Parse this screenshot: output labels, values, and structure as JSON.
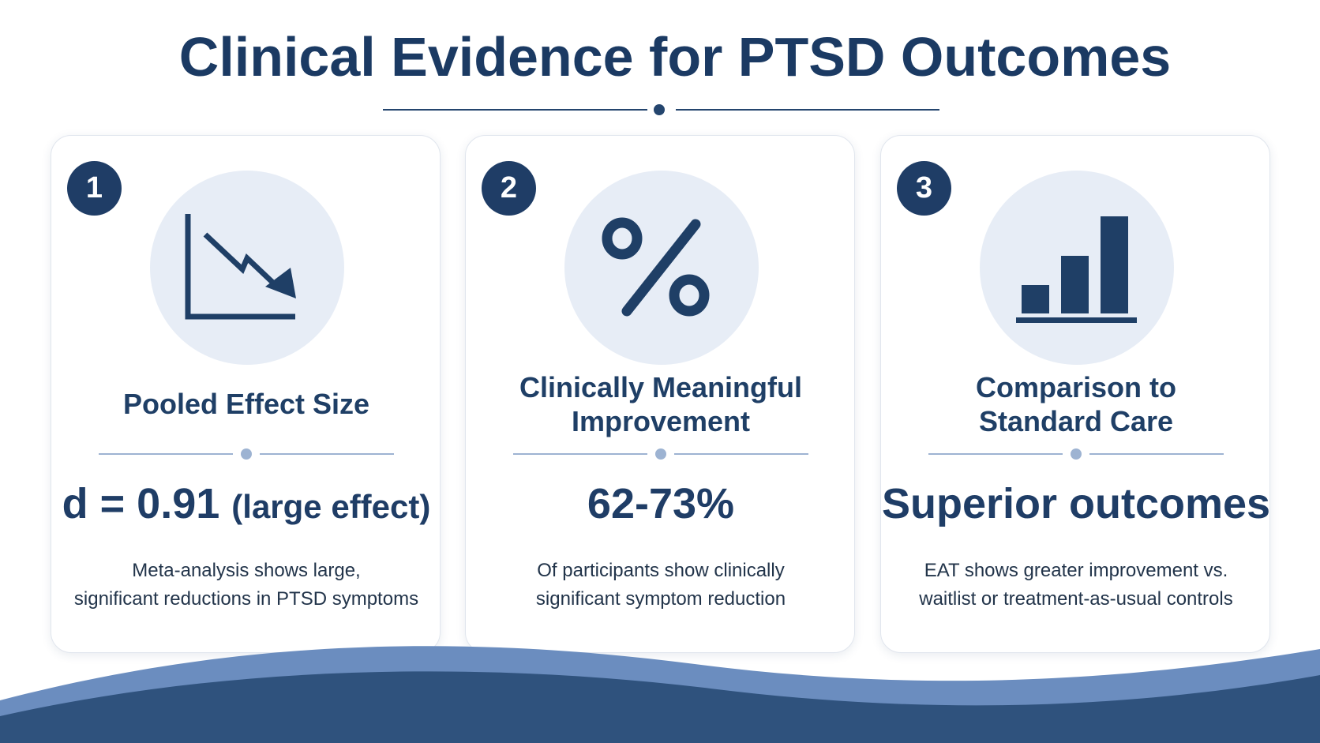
{
  "page": {
    "title": "Clinical Evidence for PTSD Outcomes"
  },
  "colors": {
    "navy": "#1f3d66",
    "light_circle": "#e7edf6",
    "wave_light": "#6b8dbf",
    "wave_dark": "#2f527d"
  },
  "cards": [
    {
      "number": "1",
      "icon": "declining-line-chart-icon",
      "title_lines": [
        "Pooled Effect Size"
      ],
      "value": "d = 0.91",
      "value_suffix": "(large effect)",
      "description_lines": [
        "Meta-analysis shows large,",
        "significant reductions in PTSD symptoms"
      ]
    },
    {
      "number": "2",
      "icon": "percent-icon",
      "title_lines": [
        "Clinically Meaningful",
        "Improvement"
      ],
      "value": "62-73%",
      "value_suffix": "",
      "description_lines": [
        "Of participants show clinically",
        "significant symptom reduction"
      ]
    },
    {
      "number": "3",
      "icon": "bar-chart-icon",
      "title_lines": [
        "Comparison to",
        "Standard Care"
      ],
      "value": "Superior outcomes",
      "value_suffix": "",
      "description_lines": [
        "EAT shows greater improvement vs.",
        "waitlist or treatment-as-usual controls"
      ]
    }
  ]
}
